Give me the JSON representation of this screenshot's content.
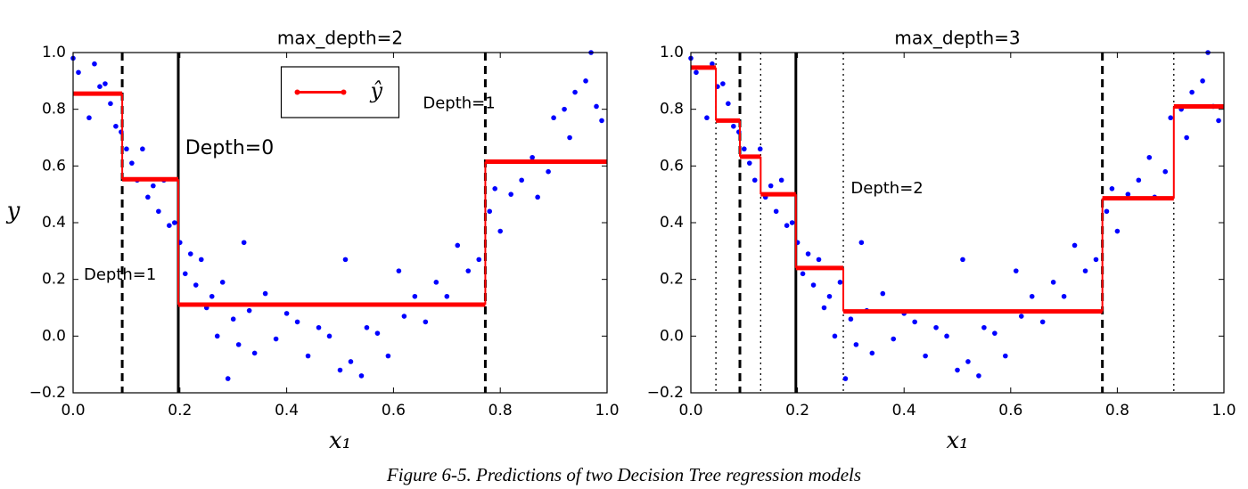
{
  "chart_data": [
    {
      "type": "scatter",
      "title": "max_depth=2",
      "xlabel": "x₁",
      "ylabel": "y",
      "xlim": [
        0,
        1
      ],
      "ylim": [
        -0.2,
        1.0
      ],
      "xticks": [
        {
          "value": 0,
          "label": "0.0"
        },
        0.2,
        0.4,
        0.6,
        0.8,
        {
          "value": 1,
          "label": "1.0"
        }
      ],
      "yticks": [
        {
          "value": -0.2,
          "label": "−0.2"
        },
        {
          "value": 0,
          "label": "0.0"
        },
        0.2,
        0.4,
        0.6,
        0.8,
        {
          "value": 1,
          "label": "1.0"
        }
      ],
      "legend": "upper center",
      "series": [
        {
          "color": "#0000ff",
          "x": [
            0.0,
            0.01,
            0.03,
            0.04,
            0.05,
            0.06,
            0.07,
            0.08,
            0.09,
            0.1,
            0.11,
            0.12,
            0.13,
            0.14,
            0.15,
            0.16,
            0.17,
            0.18,
            0.19,
            0.2,
            0.21,
            0.22,
            0.23,
            0.24,
            0.25,
            0.26,
            0.27,
            0.28,
            0.29,
            0.3,
            0.31,
            0.32,
            0.33,
            0.34,
            0.36,
            0.38,
            0.4,
            0.42,
            0.44,
            0.46,
            0.48,
            0.5,
            0.51,
            0.52,
            0.54,
            0.55,
            0.57,
            0.59,
            0.61,
            0.62,
            0.64,
            0.66,
            0.68,
            0.7,
            0.72,
            0.74,
            0.76,
            0.78,
            0.79,
            0.8,
            0.82,
            0.84,
            0.86,
            0.87,
            0.89,
            0.9,
            0.92,
            0.93,
            0.94,
            0.96,
            0.97,
            0.98,
            0.99
          ],
          "values": [
            0.98,
            0.93,
            0.77,
            0.96,
            0.88,
            0.89,
            0.82,
            0.74,
            0.72,
            0.66,
            0.61,
            0.55,
            0.66,
            0.49,
            0.53,
            0.44,
            0.55,
            0.39,
            0.4,
            0.33,
            0.22,
            0.29,
            0.18,
            0.27,
            0.1,
            0.14,
            0.0,
            0.19,
            -0.15,
            0.06,
            -0.03,
            0.33,
            0.09,
            -0.06,
            0.15,
            -0.01,
            0.08,
            0.05,
            -0.07,
            0.03,
            0.0,
            -0.12,
            0.27,
            -0.09,
            -0.14,
            0.03,
            0.01,
            -0.07,
            0.23,
            0.07,
            0.14,
            0.05,
            0.19,
            0.14,
            0.32,
            0.23,
            0.27,
            0.44,
            0.52,
            0.37,
            0.5,
            0.55,
            0.63,
            0.49,
            0.58,
            0.77,
            0.8,
            0.7,
            0.86,
            0.9,
            1.0,
            0.81,
            0.76
          ]
        },
        {
          "name": "ŷ",
          "color": "#ff0000",
          "bins": [
            0,
            0.092,
            0.197,
            0.772,
            1
          ],
          "values": [
            0.855,
            0.553,
            0.111,
            0.615
          ]
        }
      ],
      "splits": [
        {
          "x": 0.197,
          "style": "solid"
        },
        {
          "x": 0.092,
          "style": "dashed"
        },
        {
          "x": 0.772,
          "style": "dashed"
        }
      ],
      "annotations": [
        "Depth=0",
        "Depth=1",
        "Depth=1"
      ]
    },
    {
      "type": "scatter",
      "title": "max_depth=3",
      "xlabel": "x₁",
      "xlim": [
        0,
        1
      ],
      "ylim": [
        -0.2,
        1.0
      ],
      "xticks": [
        {
          "value": 0,
          "label": "0.0"
        },
        0.2,
        0.4,
        0.6,
        0.8,
        {
          "value": 1,
          "label": "1.0"
        }
      ],
      "yticks": [
        {
          "value": -0.2,
          "label": "−0.2"
        },
        {
          "value": 0,
          "label": "0.0"
        },
        0.2,
        0.4,
        0.6,
        0.8,
        {
          "value": 1,
          "label": "1.0"
        }
      ],
      "series": [
        {
          "color": "#0000ff",
          "x": [
            0.0,
            0.01,
            0.03,
            0.04,
            0.05,
            0.06,
            0.07,
            0.08,
            0.09,
            0.1,
            0.11,
            0.12,
            0.13,
            0.14,
            0.15,
            0.16,
            0.17,
            0.18,
            0.19,
            0.2,
            0.21,
            0.22,
            0.23,
            0.24,
            0.25,
            0.26,
            0.27,
            0.28,
            0.29,
            0.3,
            0.31,
            0.32,
            0.33,
            0.34,
            0.36,
            0.38,
            0.4,
            0.42,
            0.44,
            0.46,
            0.48,
            0.5,
            0.51,
            0.52,
            0.54,
            0.55,
            0.57,
            0.59,
            0.61,
            0.62,
            0.64,
            0.66,
            0.68,
            0.7,
            0.72,
            0.74,
            0.76,
            0.78,
            0.79,
            0.8,
            0.82,
            0.84,
            0.86,
            0.87,
            0.89,
            0.9,
            0.92,
            0.93,
            0.94,
            0.96,
            0.97,
            0.98,
            0.99
          ],
          "values": [
            0.98,
            0.93,
            0.77,
            0.96,
            0.88,
            0.89,
            0.82,
            0.74,
            0.72,
            0.66,
            0.61,
            0.55,
            0.66,
            0.49,
            0.53,
            0.44,
            0.55,
            0.39,
            0.4,
            0.33,
            0.22,
            0.29,
            0.18,
            0.27,
            0.1,
            0.14,
            0.0,
            0.19,
            -0.15,
            0.06,
            -0.03,
            0.33,
            0.09,
            -0.06,
            0.15,
            -0.01,
            0.08,
            0.05,
            -0.07,
            0.03,
            0.0,
            -0.12,
            0.27,
            -0.09,
            -0.14,
            0.03,
            0.01,
            -0.07,
            0.23,
            0.07,
            0.14,
            0.05,
            0.19,
            0.14,
            0.32,
            0.23,
            0.27,
            0.44,
            0.52,
            0.37,
            0.5,
            0.55,
            0.63,
            0.49,
            0.58,
            0.77,
            0.8,
            0.7,
            0.86,
            0.9,
            1.0,
            0.81,
            0.76
          ]
        },
        {
          "color": "#ff0000",
          "bins": [
            0,
            0.047,
            0.092,
            0.131,
            0.197,
            0.286,
            0.772,
            0.906,
            1
          ],
          "values": [
            0.947,
            0.76,
            0.633,
            0.5,
            0.24,
            0.087,
            0.486,
            0.81
          ]
        }
      ],
      "splits": [
        {
          "x": 0.197,
          "style": "solid"
        },
        {
          "x": 0.092,
          "style": "dashed"
        },
        {
          "x": 0.772,
          "style": "dashed"
        },
        {
          "x": 0.047,
          "style": "dotted"
        },
        {
          "x": 0.131,
          "style": "dotted"
        },
        {
          "x": 0.286,
          "style": "dotted"
        },
        {
          "x": 0.906,
          "style": "dotted"
        }
      ],
      "annotations": [
        "Depth=2"
      ]
    }
  ],
  "caption": "Figure 6-5. Predictions of two Decision Tree regression models"
}
